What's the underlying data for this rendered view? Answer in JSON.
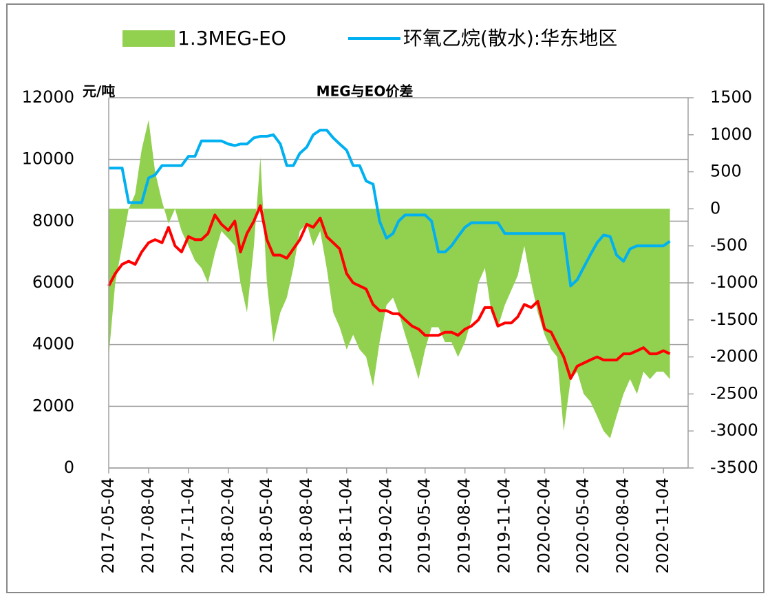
{
  "chart_data": {
    "type": "line",
    "title": "MEG与EO价差",
    "ylabel": "元/吨",
    "x": [
      "2017-05-04",
      "2017-05-19",
      "2017-06-04",
      "2017-06-19",
      "2017-07-04",
      "2017-07-19",
      "2017-08-04",
      "2017-08-19",
      "2017-09-04",
      "2017-09-19",
      "2017-10-04",
      "2017-10-19",
      "2017-11-04",
      "2017-11-19",
      "2017-12-04",
      "2017-12-19",
      "2018-01-04",
      "2018-01-19",
      "2018-02-04",
      "2018-02-19",
      "2018-03-04",
      "2018-03-19",
      "2018-04-04",
      "2018-04-19",
      "2018-05-04",
      "2018-05-19",
      "2018-06-04",
      "2018-06-19",
      "2018-07-04",
      "2018-07-19",
      "2018-08-04",
      "2018-08-19",
      "2018-09-04",
      "2018-09-19",
      "2018-10-04",
      "2018-10-19",
      "2018-11-04",
      "2018-11-19",
      "2018-12-04",
      "2018-12-19",
      "2019-01-04",
      "2019-01-19",
      "2019-02-04",
      "2019-02-19",
      "2019-03-04",
      "2019-03-19",
      "2019-04-04",
      "2019-04-19",
      "2019-05-04",
      "2019-05-19",
      "2019-06-04",
      "2019-06-19",
      "2019-07-04",
      "2019-07-19",
      "2019-08-04",
      "2019-08-19",
      "2019-09-04",
      "2019-09-19",
      "2019-10-04",
      "2019-10-19",
      "2019-11-04",
      "2019-11-19",
      "2019-12-04",
      "2019-12-19",
      "2020-01-04",
      "2020-01-19",
      "2020-02-04",
      "2020-02-19",
      "2020-03-04",
      "2020-03-19",
      "2020-04-04",
      "2020-04-19",
      "2020-05-04",
      "2020-05-19",
      "2020-06-04",
      "2020-06-19",
      "2020-07-04",
      "2020-07-19",
      "2020-08-04",
      "2020-08-19",
      "2020-09-04",
      "2020-09-19",
      "2020-10-04",
      "2020-10-19",
      "2020-11-04",
      "2020-11-19"
    ],
    "series": [
      {
        "name": "1.3MEG-EO",
        "color": "#92d050",
        "axis": "y2",
        "kind": "area",
        "values": [
          -2000,
          -1000,
          -500,
          0,
          200,
          800,
          1200,
          500,
          100,
          -200,
          0,
          -300,
          -500,
          -700,
          -800,
          -1000,
          -600,
          -300,
          -400,
          -500,
          -1000,
          -1400,
          -500,
          700,
          -1000,
          -1800,
          -1400,
          -1200,
          -800,
          -300,
          -200,
          -500,
          -300,
          -800,
          -1400,
          -1600,
          -1900,
          -1700,
          -1900,
          -2000,
          -2400,
          -1800,
          -1300,
          -1200,
          -1400,
          -1700,
          -2000,
          -2300,
          -1900,
          -1600,
          -1600,
          -1800,
          -1800,
          -2000,
          -1800,
          -1500,
          -1000,
          -800,
          -1400,
          -1600,
          -1300,
          -1100,
          -900,
          -500,
          -1000,
          -1400,
          -1700,
          -1900,
          -2000,
          -3000,
          -2300,
          -2200,
          -2500,
          -2600,
          -2800,
          -3000,
          -3100,
          -2800,
          -2500,
          -2300,
          -2500,
          -2200,
          -2300,
          -2200,
          -2200,
          -2300
        ]
      },
      {
        "name": "环氧乙烷(散水):华东地区",
        "color": "#00b0f0",
        "kind": "line",
        "values": [
          9720,
          9720,
          9720,
          8600,
          8600,
          8600,
          9400,
          9500,
          9800,
          9800,
          9800,
          9800,
          10100,
          10100,
          10600,
          10600,
          10600,
          10600,
          10500,
          10450,
          10500,
          10500,
          10700,
          10750,
          10750,
          10800,
          10500,
          9800,
          9800,
          10200,
          10400,
          10800,
          10950,
          10950,
          10700,
          10500,
          10300,
          9800,
          9800,
          9300,
          9200,
          8000,
          7450,
          7600,
          8000,
          8200,
          8200,
          8200,
          8200,
          8000,
          7000,
          7000,
          7200,
          7500,
          7800,
          7950,
          7950,
          7950,
          7950,
          7950,
          7600,
          7600,
          7600,
          7600,
          7600,
          7600,
          7600,
          7600,
          7600,
          7600,
          5900,
          6100,
          6500,
          6900,
          7300,
          7550,
          7500,
          6900,
          6700,
          7100,
          7200,
          7200,
          7200,
          7200,
          7200,
          7350
        ]
      },
      {
        "color": "#ff0000",
        "kind": "line",
        "values": [
          5900,
          6300,
          6600,
          6700,
          6600,
          7000,
          7300,
          7400,
          7300,
          7800,
          7200,
          7000,
          7500,
          7400,
          7400,
          7600,
          8200,
          7900,
          7700,
          8000,
          7000,
          7600,
          8000,
          8500,
          7400,
          6900,
          6900,
          6800,
          7100,
          7400,
          7900,
          7800,
          8100,
          7500,
          7300,
          7100,
          6300,
          6000,
          5900,
          5800,
          5300,
          5100,
          5100,
          5000,
          5000,
          4800,
          4600,
          4500,
          4300,
          4300,
          4300,
          4400,
          4400,
          4300,
          4500,
          4600,
          4800,
          5200,
          5200,
          4600,
          4700,
          4700,
          4900,
          5300,
          5200,
          5400,
          4500,
          4400,
          4000,
          3600,
          2900,
          3300,
          3400,
          3500,
          3600,
          3500,
          3500,
          3500,
          3700,
          3700,
          3800,
          3900,
          3700,
          3700,
          3800,
          3700
        ]
      }
    ],
    "xlim": [
      "2017-05-04",
      "2020-12-31"
    ],
    "xticks": [
      "2017-05-04",
      "2017-08-04",
      "2017-11-04",
      "2018-02-04",
      "2018-05-04",
      "2018-08-04",
      "2018-11-04",
      "2019-02-04",
      "2019-05-04",
      "2019-08-04",
      "2019-11-04",
      "2020-02-04",
      "2020-05-04",
      "2020-08-04",
      "2020-11-04"
    ],
    "ylim": [
      0,
      12000
    ],
    "yticks": [
      0,
      2000,
      4000,
      6000,
      8000,
      10000,
      12000
    ],
    "y2lim": [
      -3500,
      1500
    ],
    "y2ticks": [
      -3500,
      -3000,
      -2500,
      -2000,
      -1500,
      -1000,
      -500,
      0,
      500,
      1000,
      1500
    ],
    "grid": true,
    "legend": "top"
  }
}
